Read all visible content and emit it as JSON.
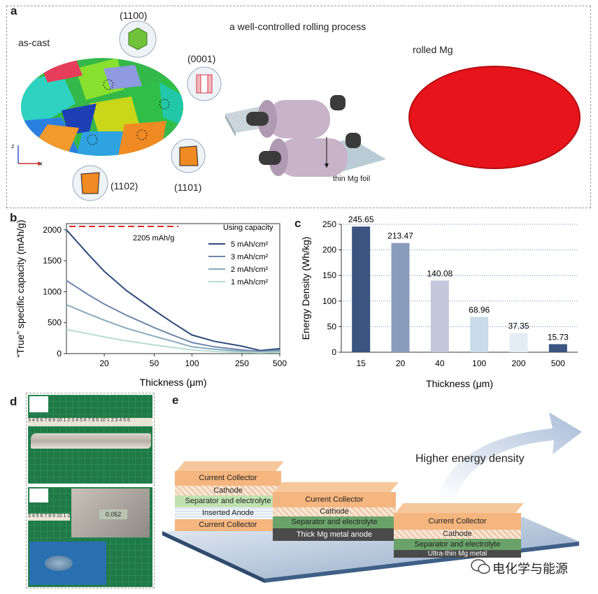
{
  "panel_a": {
    "letter": "a",
    "title": "a well-controlled rolling process",
    "as_cast": "as-cast",
    "rolled": "rolled Mg",
    "facets": [
      "(1100)",
      "(0001)",
      "(1102)",
      "(1101)"
    ],
    "foil_label": "thin Mg foil",
    "axis_x": "x",
    "axis_z": "z"
  },
  "panel_b": {
    "letter": "b"
  },
  "panel_c": {
    "letter": "c"
  },
  "panel_d": {
    "letter": "d",
    "ruler_text": "3 4 5 6 7 8 9 10 1 2 3 4 5 6 7 8 9 10 1 2 3 4 5 6",
    "caliper_reading": "0.052"
  },
  "panel_e": {
    "letter": "e",
    "arrow_label": "Higher energy density",
    "stacks": [
      {
        "layers": [
          "Current Collector",
          "Cathode",
          "Separator and electrolyte",
          "Inserted Anode",
          "Current Collector"
        ]
      },
      {
        "layers": [
          "Current Collector",
          "Cathode",
          "Separator and electrolyte",
          "Thick Mg metal anode"
        ]
      },
      {
        "layers": [
          "Current Collector",
          "Cathode",
          "Separator and electrolyte",
          "Ultra-thin Mg metal"
        ]
      }
    ]
  },
  "watermark": "电化学与能源",
  "colors": {
    "rolled_mg": "#e8141b",
    "bar_dark": "#3b5580",
    "collector": "#f4b57e",
    "separator": "#6aa36a",
    "anode": "#4a4a4a"
  },
  "chart_data": [
    {
      "type": "line",
      "xlabel": "Thickness (μm)",
      "ylabel": "“True” specific capacity (mAh/g)",
      "x_scale": "log",
      "xticks": [
        20,
        50,
        100,
        250,
        500
      ],
      "yticks": [
        0,
        500,
        1000,
        1500,
        2000
      ],
      "xlim": [
        10,
        500
      ],
      "ylim": [
        0,
        2100
      ],
      "legend_title": "Using capacity",
      "legend_position": "top-right",
      "reference_line": {
        "value": 2205,
        "label": "2205 mAh/g"
      },
      "series": [
        {
          "name": "5 mAh/cm²",
          "color": "#2e4a7a",
          "x": [
            10,
            15,
            20,
            30,
            50,
            70,
            100,
            150,
            250,
            350,
            500
          ],
          "y": [
            2000,
            1600,
            1330,
            1020,
            700,
            500,
            300,
            200,
            120,
            50,
            80
          ]
        },
        {
          "name": "3 mAh/cm²",
          "color": "#6f87ac",
          "x": [
            10,
            15,
            20,
            30,
            50,
            70,
            100,
            150,
            250,
            350,
            500
          ],
          "y": [
            1180,
            950,
            800,
            620,
            420,
            300,
            180,
            110,
            60,
            35,
            60
          ]
        },
        {
          "name": "2 mAh/cm²",
          "color": "#87a9bd",
          "x": [
            10,
            15,
            20,
            30,
            50,
            70,
            100,
            150,
            250,
            350,
            500
          ],
          "y": [
            790,
            640,
            540,
            410,
            280,
            200,
            110,
            70,
            40,
            25,
            40
          ]
        },
        {
          "name": "1 mAh/cm²",
          "color": "#b7ddd2",
          "x": [
            10,
            15,
            20,
            30,
            50,
            70,
            100,
            150,
            250,
            350,
            500
          ],
          "y": [
            390,
            320,
            270,
            205,
            140,
            100,
            60,
            35,
            20,
            12,
            20
          ]
        }
      ]
    },
    {
      "type": "bar",
      "xlabel": "Thickness (μm)",
      "ylabel": "Energy Density (Wh/kg)",
      "categories": [
        "15",
        "20",
        "40",
        "100",
        "200",
        "500"
      ],
      "values": [
        245.65,
        213.47,
        140.08,
        68.96,
        37.35,
        15.73
      ],
      "value_labels": [
        "245.65",
        "213.47",
        "140.08",
        "68.96",
        "37.35",
        "15.73"
      ],
      "colors": [
        "#3b5580",
        "#8a9cbd",
        "#c4c6d9",
        "#c7dbe8",
        "#e4edf5",
        "#3b5580"
      ],
      "yticks": [
        0,
        50,
        100,
        150,
        200,
        250
      ],
      "ylim": [
        0,
        250
      ],
      "grid": "horizontal dotted"
    }
  ]
}
